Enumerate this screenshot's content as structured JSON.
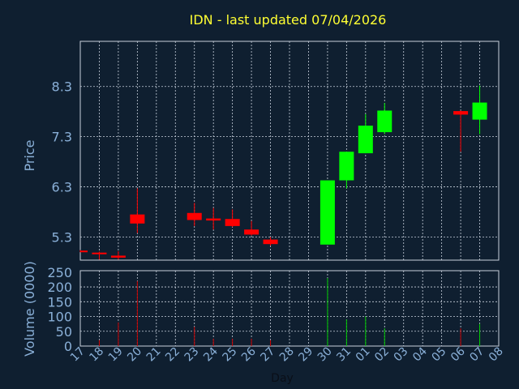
{
  "chart_data": {
    "type": "candlestick",
    "title": "IDN - last updated 07/04/2026",
    "xlabel": "Day",
    "price_panel": {
      "ylabel": "Price",
      "yticks": [
        5.3,
        6.3,
        7.3,
        8.3
      ],
      "ylim": [
        4.84,
        9.2
      ]
    },
    "volume_panel": {
      "ylabel": "Volume (0000)",
      "yticks": [
        0,
        50,
        100,
        150,
        200,
        250
      ],
      "ylim": [
        0,
        255
      ]
    },
    "x_tick_labels": [
      "17",
      "18",
      "19",
      "20",
      "21",
      "22",
      "23",
      "24",
      "25",
      "26",
      "27",
      "28",
      "29",
      "30",
      "31",
      "01",
      "02",
      "03",
      "04",
      "05",
      "06",
      "07",
      "08"
    ],
    "candles": [
      {
        "day": "17",
        "open": 5.03,
        "close": 5.01,
        "high": 5.04,
        "low": 5.0,
        "volume": 0
      },
      {
        "day": "18",
        "open": 4.99,
        "close": 4.97,
        "high": 5.01,
        "low": 4.85,
        "volume": 20
      },
      {
        "day": "19",
        "open": 4.93,
        "close": 4.89,
        "high": 5.02,
        "low": 4.85,
        "volume": 80
      },
      {
        "day": "20",
        "open": 5.75,
        "close": 5.57,
        "high": 6.27,
        "low": 5.38,
        "volume": 220
      },
      {
        "day": "23",
        "open": 5.78,
        "close": 5.64,
        "high": 5.98,
        "low": 5.52,
        "volume": 65
      },
      {
        "day": "24",
        "open": 5.67,
        "close": 5.63,
        "high": 5.88,
        "low": 5.45,
        "volume": 25
      },
      {
        "day": "25",
        "open": 5.66,
        "close": 5.52,
        "high": 5.85,
        "low": 5.5,
        "volume": 25
      },
      {
        "day": "26",
        "open": 5.45,
        "close": 5.35,
        "high": 5.62,
        "low": 5.33,
        "volume": 25
      },
      {
        "day": "27",
        "open": 5.25,
        "close": 5.16,
        "high": 5.3,
        "low": 5.13,
        "volume": 20
      },
      {
        "day": "30",
        "open": 5.15,
        "close": 6.43,
        "high": 6.43,
        "low": 5.15,
        "volume": 230
      },
      {
        "day": "31",
        "open": 6.43,
        "close": 7.0,
        "high": 7.0,
        "low": 6.27,
        "volume": 90
      },
      {
        "day": "01",
        "open": 6.97,
        "close": 7.52,
        "high": 7.75,
        "low": 6.97,
        "volume": 100
      },
      {
        "day": "02",
        "open": 7.39,
        "close": 7.82,
        "high": 7.97,
        "low": 7.35,
        "volume": 60
      },
      {
        "day": "06",
        "open": 7.81,
        "close": 7.74,
        "high": 7.82,
        "low": 7.0,
        "volume": 60
      },
      {
        "day": "07",
        "open": 7.64,
        "close": 7.98,
        "high": 8.32,
        "low": 7.35,
        "volume": 75
      }
    ],
    "colors": {
      "background": "#0f1f30",
      "grid": "#c8d0dc",
      "axis_text": "#8ab0d8",
      "title": "#ffff33",
      "up": "#00ff00",
      "down": "#ff0000",
      "up_volume": "#00cc00",
      "down_volume": "#cc0000"
    }
  }
}
